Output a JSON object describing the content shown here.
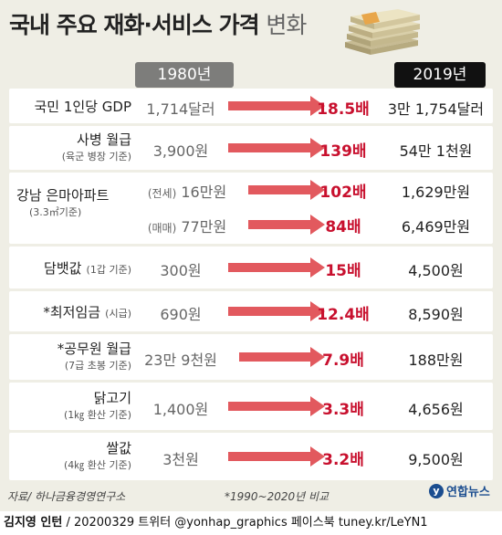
{
  "title": {
    "main": "국내 주요 재화·서비스 가격",
    "light": "변화"
  },
  "headers": {
    "y1980": "1980년",
    "y2019": "2019년"
  },
  "colors": {
    "accent": "#c8102e",
    "arrow": "#e2595e",
    "row_bg": "#ffffff",
    "page_bg": "#efeee5"
  },
  "chart_data": {
    "type": "table",
    "rows": [
      {
        "label": "국민 1인당 GDP",
        "sub": "",
        "v1980": "1,714달러",
        "multiple": "18.5배",
        "v2019": "3만 1,754달러"
      },
      {
        "label": "사병 월급",
        "sub": "(육군 병장 기준)",
        "v1980": "3,900원",
        "multiple": "139배",
        "v2019": "54만 1천원"
      },
      {
        "label": "강남 은마아파트",
        "sub": "(3.3㎡기준)",
        "subrows": [
          {
            "prefix": "(전세)",
            "v1980": "16만원",
            "multiple": "102배",
            "v2019": "1,629만원"
          },
          {
            "prefix": "(매매)",
            "v1980": "77만원",
            "multiple": "84배",
            "v2019": "6,469만원"
          }
        ]
      },
      {
        "label": "담뱃값",
        "sub": "(1갑 기준)",
        "v1980": "300원",
        "multiple": "15배",
        "v2019": "4,500원"
      },
      {
        "label": "*최저임금",
        "sub": "(시급)",
        "v1980": "690원",
        "multiple": "12.4배",
        "v2019": "8,590원"
      },
      {
        "label": "*공무원 월급",
        "sub": "(7급 초봉 기준)",
        "v1980": "23만 9천원",
        "multiple": "7.9배",
        "v2019": "188만원"
      },
      {
        "label": "닭고기",
        "sub": "(1㎏ 환산 기준)",
        "v1980": "1,400원",
        "multiple": "3.3배",
        "v2019": "4,656원"
      },
      {
        "label": "쌀값",
        "sub": "(4㎏ 환산 기준)",
        "v1980": "3천원",
        "multiple": "3.2배",
        "v2019": "9,500원"
      }
    ]
  },
  "footer": {
    "source": "자료/ 하나금융경영연구소",
    "note": "*1990~2020년 비교",
    "logo": "연합뉴스",
    "credit_name": "김지영 인턴",
    "credit_rest": " / 20200329 트위터 @yonhap_graphics  페이스북 tuney.kr/LeYN1"
  },
  "icons": {
    "money": "money-stack-icon",
    "arrow": "right-arrow-icon",
    "logo": "yonhap-logo-icon"
  }
}
